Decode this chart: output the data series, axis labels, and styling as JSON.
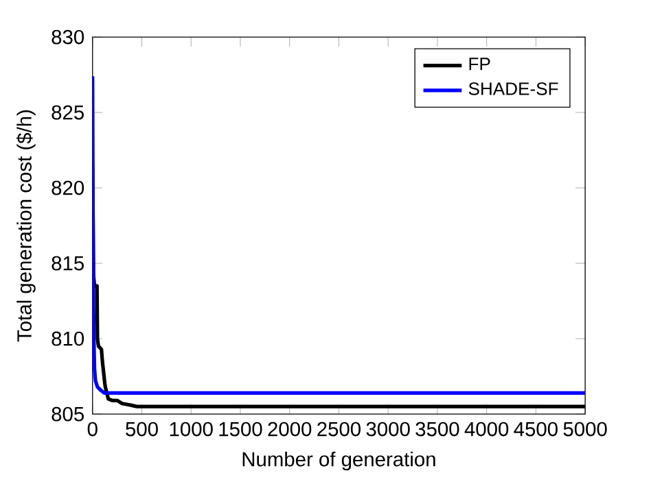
{
  "chart_data": {
    "type": "line",
    "xlabel": "Number of generation",
    "ylabel": "Total generation cost ($/h)",
    "xlim": [
      0,
      5000
    ],
    "ylim": [
      805,
      830
    ],
    "xticks": [
      0,
      500,
      1000,
      1500,
      2000,
      2500,
      3000,
      3500,
      4000,
      4500,
      5000
    ],
    "yticks": [
      805,
      810,
      815,
      820,
      825,
      830
    ],
    "legend": "top right",
    "grid": false,
    "marker": "none",
    "line_style": "solid",
    "series": [
      {
        "name": "FP",
        "color": "#000000",
        "x": [
          0,
          5,
          10,
          20,
          30,
          45,
          50,
          60,
          90,
          100,
          125,
          130,
          160,
          200,
          250,
          300,
          380,
          450,
          600,
          1000,
          5000
        ],
        "values": [
          821.5,
          818,
          814.2,
          813.5,
          813.5,
          813.5,
          810,
          809.5,
          809.3,
          808.5,
          807,
          806.8,
          806,
          805.9,
          805.9,
          805.7,
          805.6,
          805.5,
          805.5,
          805.5,
          805.5
        ]
      },
      {
        "name": "SHADE-SF",
        "color": "#0000ff",
        "x": [
          0,
          5,
          10,
          15,
          20,
          30,
          50,
          80,
          120,
          200,
          5000
        ],
        "values": [
          827.4,
          818,
          812,
          809.5,
          808,
          807.2,
          806.8,
          806.6,
          806.4,
          806.4,
          806.4
        ]
      }
    ]
  }
}
